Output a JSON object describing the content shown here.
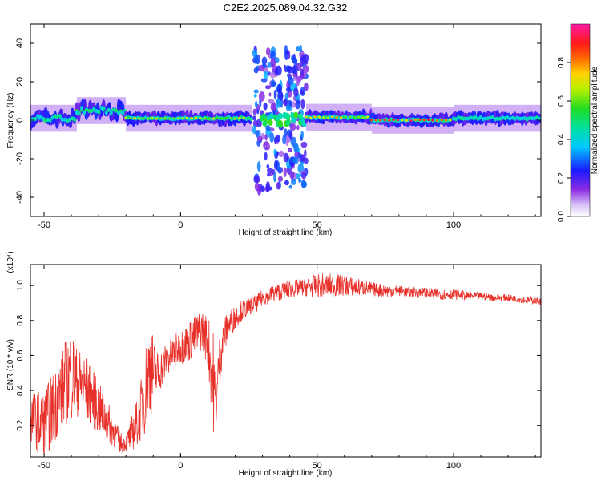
{
  "title": "C2E2.2025.089.04.32.G32",
  "colors": {
    "axis": "#000000",
    "snr_line": "#e8302a",
    "ridge_high": "#e2192a",
    "ridge_mid": "#23d9b0",
    "halo": "#7a2cf0"
  },
  "chart_data": [
    {
      "type": "heatmap",
      "title": "C2E2.2025.089.04.32.G32",
      "xlabel": "Height of straight line (km)",
      "ylabel": "Frequency (Hz)",
      "xlim": [
        -55,
        132
      ],
      "ylim": [
        -50,
        50
      ],
      "xticks": [
        -50,
        0,
        50,
        100
      ],
      "yticks": [
        -40,
        -20,
        0,
        20,
        40
      ],
      "grid": false,
      "colorbar": {
        "label": "Normalized spectral amplitude",
        "ticks": [
          "0.0",
          "0.2",
          "0.4",
          "0.6",
          "0.8"
        ],
        "range": [
          0,
          1
        ],
        "colormap": "rainbow (violet-blue-cyan-green-yellow-red-magenta)"
      },
      "ridge": {
        "description": "Spectral power concentrated near 0 Hz along the line; widened scatter between 27 and 46 km",
        "x_segments": [
          {
            "x": [
              -55,
              -38
            ],
            "freq_center": 1,
            "amplitude": 0.45
          },
          {
            "x": [
              -38,
              -20
            ],
            "freq_center": 5,
            "amplitude": 0.55
          },
          {
            "x": [
              -20,
              26
            ],
            "freq_center": 1,
            "amplitude": 0.75
          },
          {
            "x": [
              27,
              37
            ],
            "freq_spread": [
              -38,
              38
            ],
            "amplitude": 0.25
          },
          {
            "x": [
              38,
              46
            ],
            "freq_spread": [
              -35,
              38
            ],
            "amplitude": 0.25
          },
          {
            "x": [
              46,
              70
            ],
            "freq_center": 1.5,
            "amplitude": 0.8
          },
          {
            "x": [
              70,
              100
            ],
            "freq_center": 0,
            "amplitude": 0.95
          },
          {
            "x": [
              100,
              132
            ],
            "freq_center": 1,
            "amplitude": 0.5
          }
        ]
      }
    },
    {
      "type": "line",
      "xlabel": "Height of straight line (km)",
      "ylabel": "SNR (10 * v/v)",
      "y_multiplier": "(x10⁴)",
      "xlim": [
        -55,
        132
      ],
      "ylim": [
        0.02,
        1.12
      ],
      "xticks": [
        -50,
        0,
        50,
        100
      ],
      "yticks": [
        "0.2",
        "0.4",
        "0.6",
        "0.8",
        "1.0"
      ],
      "grid": false,
      "series": [
        {
          "x": [
            -55,
            -50,
            -45,
            -42,
            -40,
            -38,
            -35,
            -30,
            -25,
            -22,
            -20,
            -18,
            -15,
            -13,
            -11,
            -10,
            -8,
            -5,
            -2,
            0,
            3,
            6,
            8,
            10,
            12,
            13,
            14,
            16,
            18,
            20,
            22,
            25,
            28,
            30,
            35,
            40,
            45,
            50,
            55,
            60,
            65,
            70,
            75,
            80,
            85,
            90,
            95,
            100,
            105,
            110,
            115,
            120,
            125,
            132
          ],
          "values": [
            0.25,
            0.2,
            0.35,
            0.45,
            0.5,
            0.45,
            0.42,
            0.3,
            0.18,
            0.1,
            0.1,
            0.15,
            0.25,
            0.4,
            0.55,
            0.5,
            0.5,
            0.58,
            0.62,
            0.65,
            0.68,
            0.72,
            0.75,
            0.68,
            0.45,
            0.3,
            0.55,
            0.72,
            0.78,
            0.82,
            0.85,
            0.88,
            0.9,
            0.93,
            0.96,
            0.98,
            0.99,
            1.0,
            1.0,
            1.0,
            0.99,
            0.98,
            0.97,
            0.97,
            0.96,
            0.96,
            0.95,
            0.95,
            0.94,
            0.94,
            0.93,
            0.93,
            0.92,
            0.91
          ],
          "noise": [
            0.15,
            0.2,
            0.22,
            0.25,
            0.28,
            0.2,
            0.2,
            0.15,
            0.1,
            0.06,
            0.05,
            0.1,
            0.15,
            0.25,
            0.3,
            0.2,
            0.12,
            0.1,
            0.1,
            0.1,
            0.12,
            0.12,
            0.12,
            0.15,
            0.3,
            0.1,
            0.15,
            0.1,
            0.08,
            0.07,
            0.06,
            0.05,
            0.05,
            0.05,
            0.05,
            0.05,
            0.05,
            0.07,
            0.07,
            0.06,
            0.05,
            0.04,
            0.04,
            0.03,
            0.03,
            0.03,
            0.03,
            0.03,
            0.025,
            0.02,
            0.02,
            0.02,
            0.02,
            0.02
          ]
        }
      ]
    }
  ]
}
